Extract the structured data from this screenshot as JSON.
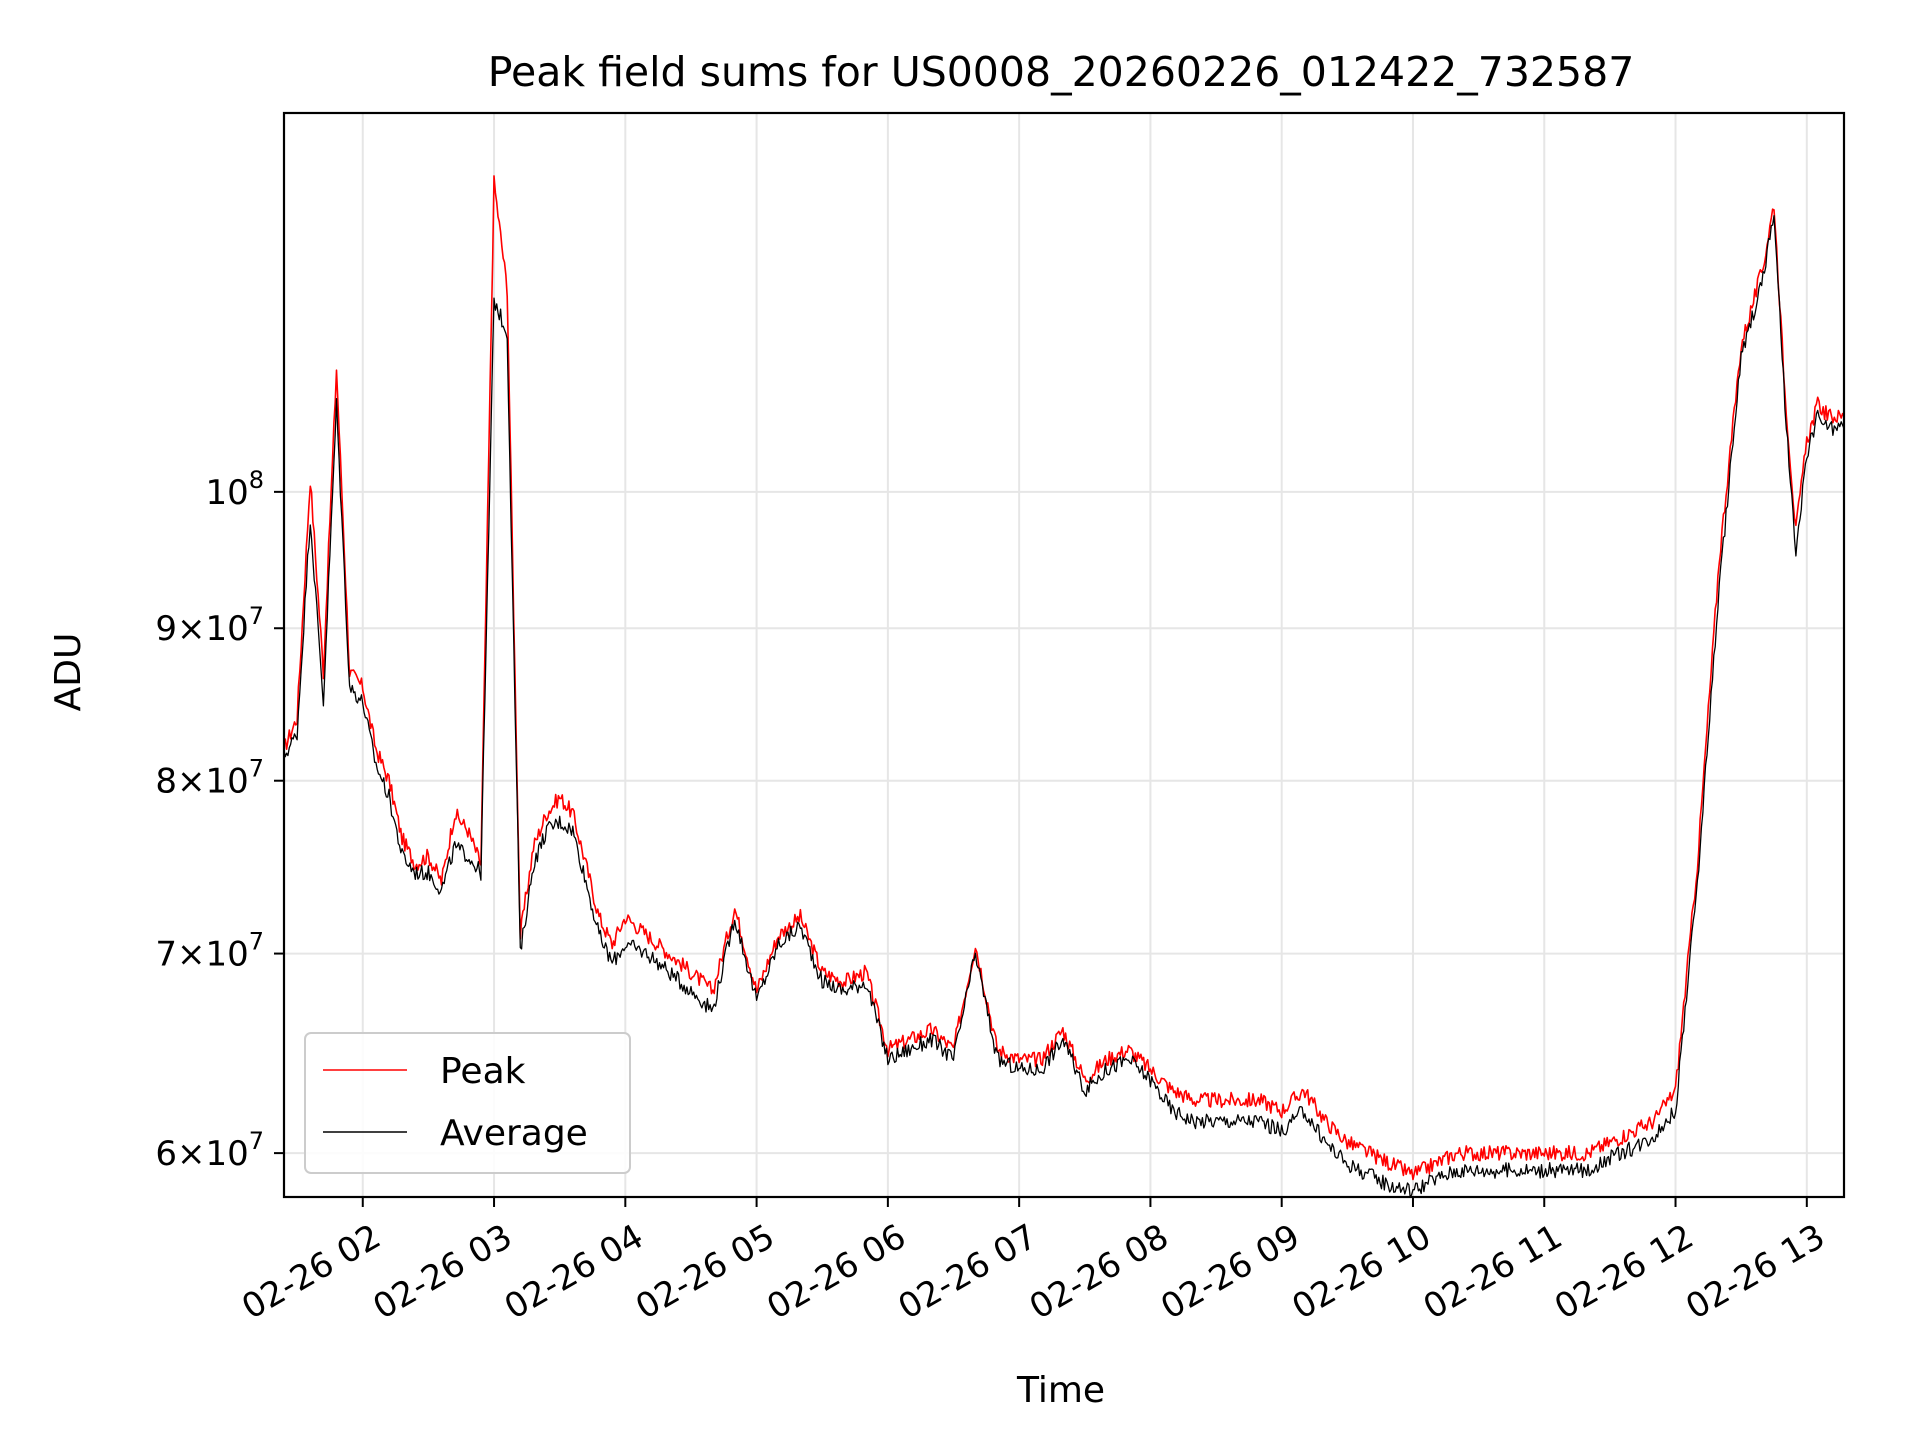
{
  "chart_data": {
    "type": "line",
    "title": "Peak field sums for US0008_20260226_012422_732587",
    "xlabel": "Time",
    "ylabel": "ADU",
    "yscale": "log",
    "xlim": [
      "02-26 01:24",
      "02-26 13:17"
    ],
    "ylim": [
      58000000,
      134000000
    ],
    "grid": true,
    "legend_position": "lower-left",
    "x_ticks": [
      "02-26 02",
      "02-26 03",
      "02-26 04",
      "02-26 05",
      "02-26 06",
      "02-26 07",
      "02-26 08",
      "02-26 09",
      "02-26 10",
      "02-26 11",
      "02-26 12",
      "02-26 13"
    ],
    "y_ticks": [
      {
        "value": 60000000,
        "mantissa": "6",
        "exponent": "7"
      },
      {
        "value": 70000000,
        "mantissa": "7",
        "exponent": "7"
      },
      {
        "value": 80000000,
        "mantissa": "8",
        "exponent": "7"
      },
      {
        "value": 90000000,
        "mantissa": "9",
        "exponent": "7"
      },
      {
        "value": 100000000,
        "mantissa": "",
        "exponent": "8"
      }
    ],
    "series": [
      {
        "name": "Peak",
        "color": "#ff0000",
        "x": [
          "01:24",
          "01:30",
          "01:36",
          "01:42",
          "01:48",
          "01:54",
          "02:00",
          "02:06",
          "02:12",
          "02:18",
          "02:24",
          "02:30",
          "02:36",
          "02:42",
          "02:48",
          "02:54",
          "03:00",
          "03:06",
          "03:12",
          "03:18",
          "03:24",
          "03:30",
          "03:36",
          "03:42",
          "03:48",
          "03:54",
          "04:00",
          "04:10",
          "04:20",
          "04:30",
          "04:40",
          "04:50",
          "05:00",
          "05:10",
          "05:20",
          "05:30",
          "05:40",
          "05:50",
          "06:00",
          "06:10",
          "06:20",
          "06:30",
          "06:40",
          "06:50",
          "07:00",
          "07:10",
          "07:20",
          "07:30",
          "07:40",
          "07:50",
          "08:00",
          "08:10",
          "08:20",
          "08:30",
          "08:40",
          "08:50",
          "09:00",
          "09:10",
          "09:20",
          "09:30",
          "09:40",
          "09:50",
          "10:00",
          "10:10",
          "10:20",
          "10:30",
          "10:40",
          "10:50",
          "11:00",
          "11:10",
          "11:20",
          "11:30",
          "11:40",
          "11:50",
          "12:00",
          "12:10",
          "12:20",
          "12:30",
          "12:40",
          "12:45",
          "12:50",
          "12:55",
          "13:00",
          "13:05",
          "13:10",
          "13:17"
        ],
        "y": [
          82000000,
          84000000,
          101000000,
          87000000,
          110000000,
          87000000,
          86000000,
          82000000,
          80000000,
          76500000,
          75000000,
          75500000,
          74000000,
          78000000,
          77000000,
          75000000,
          127000000,
          117000000,
          71000000,
          76000000,
          78000000,
          79000000,
          78000000,
          75000000,
          72000000,
          70500000,
          72000000,
          71000000,
          70000000,
          69000000,
          68000000,
          72500000,
          68000000,
          71000000,
          72000000,
          69000000,
          68500000,
          69000000,
          65000000,
          65500000,
          66000000,
          65000000,
          70500000,
          65000000,
          64500000,
          64500000,
          66000000,
          63500000,
          64500000,
          65000000,
          64000000,
          63000000,
          62500000,
          62500000,
          62500000,
          62500000,
          62000000,
          63000000,
          61500000,
          60500000,
          60000000,
          59500000,
          59000000,
          59500000,
          60000000,
          60000000,
          60000000,
          60000000,
          60000000,
          60000000,
          60000000,
          60500000,
          61000000,
          61500000,
          63000000,
          75000000,
          95000000,
          112000000,
          119000000,
          125000000,
          108000000,
          97000000,
          104000000,
          107000000,
          106000000,
          106000000
        ]
      },
      {
        "name": "Average",
        "color": "#000000",
        "x": [
          "01:24",
          "01:30",
          "01:36",
          "01:42",
          "01:48",
          "01:54",
          "02:00",
          "02:06",
          "02:12",
          "02:18",
          "02:24",
          "02:30",
          "02:36",
          "02:42",
          "02:48",
          "02:54",
          "03:00",
          "03:06",
          "03:12",
          "03:18",
          "03:24",
          "03:30",
          "03:36",
          "03:42",
          "03:48",
          "03:54",
          "04:00",
          "04:10",
          "04:20",
          "04:30",
          "04:40",
          "04:50",
          "05:00",
          "05:10",
          "05:20",
          "05:30",
          "05:40",
          "05:50",
          "06:00",
          "06:10",
          "06:20",
          "06:30",
          "06:40",
          "06:50",
          "07:00",
          "07:10",
          "07:20",
          "07:30",
          "07:40",
          "07:50",
          "08:00",
          "08:10",
          "08:20",
          "08:30",
          "08:40",
          "08:50",
          "09:00",
          "09:10",
          "09:20",
          "09:30",
          "09:40",
          "09:50",
          "10:00",
          "10:10",
          "10:20",
          "10:30",
          "10:40",
          "10:50",
          "11:00",
          "11:10",
          "11:20",
          "11:30",
          "11:40",
          "11:50",
          "12:00",
          "12:10",
          "12:20",
          "12:30",
          "12:40",
          "12:45",
          "12:50",
          "12:55",
          "13:00",
          "13:05",
          "13:10",
          "13:17"
        ],
        "y": [
          81500000,
          83000000,
          98000000,
          85000000,
          107000000,
          86000000,
          85000000,
          81000000,
          79000000,
          75500000,
          74500000,
          74500000,
          73500000,
          76000000,
          75500000,
          74500000,
          116000000,
          113000000,
          70000000,
          75000000,
          77000000,
          77500000,
          77000000,
          74000000,
          71000000,
          69500000,
          70500000,
          70000000,
          69000000,
          68000000,
          67000000,
          72000000,
          67500000,
          70500000,
          71500000,
          68500000,
          68000000,
          68500000,
          64500000,
          65000000,
          65500000,
          64500000,
          70000000,
          64500000,
          64000000,
          64000000,
          65500000,
          63000000,
          64000000,
          64500000,
          63500000,
          62000000,
          61500000,
          61500000,
          61500000,
          61500000,
          61000000,
          62000000,
          60500000,
          59500000,
          59000000,
          58500000,
          58300000,
          58800000,
          59200000,
          59200000,
          59200000,
          59200000,
          59200000,
          59200000,
          59200000,
          59800000,
          60200000,
          60800000,
          62000000,
          74000000,
          93000000,
          111000000,
          118000000,
          124000000,
          107000000,
          95000000,
          103000000,
          106000000,
          105000000,
          105000000
        ]
      }
    ]
  }
}
